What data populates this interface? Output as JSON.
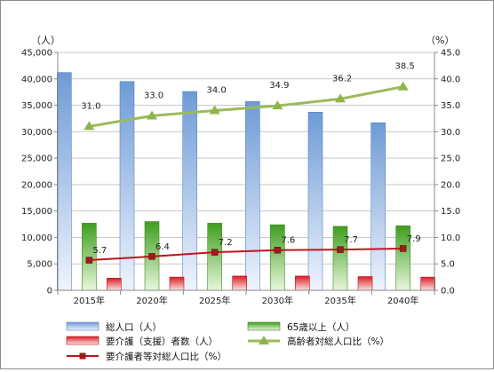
{
  "chart_data": {
    "type": "bar",
    "categories": [
      "2015年",
      "2020年",
      "2025年",
      "2030年",
      "2035年",
      "2040年"
    ],
    "left_axis": {
      "unit_label": "（人）",
      "ylim": [
        0,
        45000
      ],
      "ticks": [
        0,
        5000,
        10000,
        15000,
        20000,
        25000,
        30000,
        35000,
        40000,
        45000
      ],
      "tick_labels": [
        "0",
        "5,000",
        "10,000",
        "15,000",
        "20,000",
        "25,000",
        "30,000",
        "35,000",
        "40,000",
        "45,000"
      ]
    },
    "right_axis": {
      "unit_label": "（%）",
      "ylim": [
        0,
        45
      ],
      "ticks": [
        0,
        5,
        10,
        15,
        20,
        25,
        30,
        35,
        40,
        45
      ],
      "tick_labels": [
        "0.0",
        "5.0",
        "10.0",
        "15.0",
        "20.0",
        "25.0",
        "30.0",
        "35.0",
        "40.0",
        "45.0"
      ]
    },
    "series": [
      {
        "name": "総人口（人）",
        "type": "bar",
        "axis": "left",
        "color": "#8eb4e3",
        "values": [
          41200,
          39500,
          37600,
          35700,
          33700,
          31700
        ]
      },
      {
        "name": "65歳以上（人）",
        "type": "bar",
        "axis": "left",
        "color": "#4caf2a",
        "values": [
          12700,
          13000,
          12700,
          12400,
          12100,
          12200
        ]
      },
      {
        "name": "要介護（支援）者数（人）",
        "type": "bar",
        "axis": "left",
        "color": "#e0262e",
        "values": [
          2300,
          2500,
          2700,
          2700,
          2600,
          2500
        ]
      },
      {
        "name": "高齢者対総人口比（%）",
        "type": "line",
        "axis": "right",
        "marker": "triangle",
        "color": "#9bbb59",
        "values": [
          31.0,
          33.0,
          34.0,
          34.9,
          36.2,
          38.5
        ],
        "labels": [
          "31.0",
          "33.0",
          "34.0",
          "34.9",
          "36.2",
          "38.5"
        ]
      },
      {
        "name": "要介護者等対総人口比（%）",
        "type": "line",
        "axis": "right",
        "marker": "square",
        "color": "#c0141c",
        "values": [
          5.7,
          6.4,
          7.2,
          7.6,
          7.7,
          7.9
        ],
        "labels": [
          "5.7",
          "6.4",
          "7.2",
          "7.6",
          "7.7",
          "7.9"
        ]
      }
    ],
    "grid": true,
    "legend_position": "bottom"
  }
}
